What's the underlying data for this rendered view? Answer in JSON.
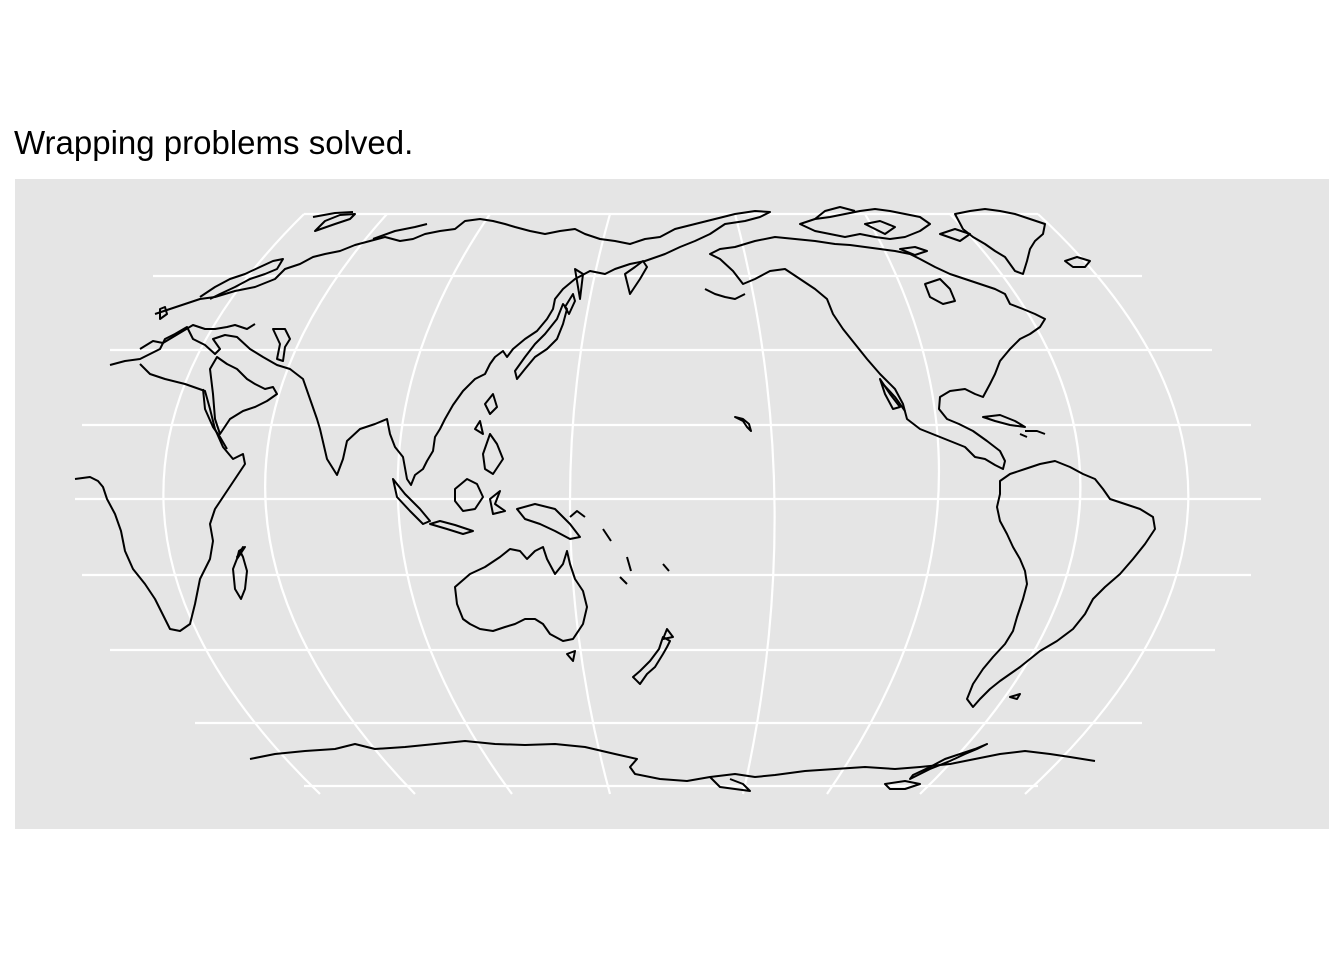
{
  "title": "Wrapping problems solved.",
  "colors": {
    "panel_bg": "#e5e5e5",
    "graticule": "#ffffff",
    "coastline": "#000000",
    "page_bg": "#ffffff"
  },
  "map": {
    "projection": "robinson",
    "center_longitude": 150,
    "graticule_interval_degrees": 30,
    "features": [
      "Africa",
      "Eurasia",
      "Japan",
      "Southeast Asia",
      "Australia",
      "New Zealand",
      "Antarctica",
      "North America",
      "South America",
      "Greenland",
      "Hawaii",
      "Madagascar",
      "Canadian Arctic Archipelago",
      "Caribbean"
    ]
  }
}
